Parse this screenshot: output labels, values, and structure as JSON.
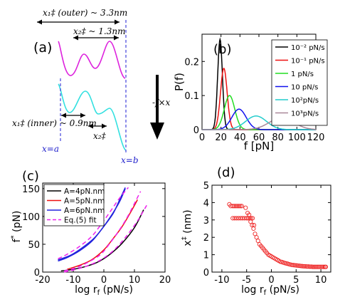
{
  "chart_data": [
    {
      "type": "line",
      "panel_label": "(a)",
      "annotations": {
        "outer_distance": "x₁‡ (outer) ~ 3.3nm",
        "x2_outer": "x₂‡ ~ 1.3nm",
        "inner_distance": "x₁‡ (inner) ~ 0.9nm",
        "x2_inner": "x₂‡",
        "force_label": "-f×x",
        "x_a": "x=a",
        "x_b": "x=b"
      },
      "colors": {
        "upper_curve": "#dd22dd",
        "lower_curve": "#33e0e0",
        "boundary": "#4444dd"
      }
    },
    {
      "type": "line",
      "panel_label": "(b)",
      "xlabel": "f [pN]",
      "ylabel": "P(f)",
      "xlim": [
        0,
        120
      ],
      "ylim": [
        0,
        0.28
      ],
      "xticks": [
        0,
        20,
        40,
        60,
        80,
        100,
        120
      ],
      "yticks": [
        0,
        0.1,
        0.2
      ],
      "ytick_labels": [
        "0",
        "0.1",
        "0.2"
      ],
      "legend": "top-right",
      "series": [
        {
          "name": "10⁻² pN/s",
          "peak_f": 19,
          "peak_p": 0.265,
          "sigma": 2.5,
          "color": "#000000"
        },
        {
          "name": "10⁻¹ pN/s",
          "peak_f": 23,
          "peak_p": 0.18,
          "sigma": 3.5,
          "color": "#ee1111"
        },
        {
          "name": "1 pN/s",
          "peak_f": 29,
          "peak_p": 0.1,
          "sigma": 5.5,
          "color": "#22dd22"
        },
        {
          "name": "10 pN/s",
          "peak_f": 39,
          "peak_p": 0.06,
          "sigma": 7.5,
          "color": "#1111ee"
        },
        {
          "name": "10²pN/s",
          "peak_f": 57,
          "peak_p": 0.04,
          "sigma": 11,
          "color": "#22cccc"
        },
        {
          "name": "10³pN/s",
          "peak_f": 84,
          "peak_p": 0.035,
          "sigma": 13,
          "color": "#aa8899"
        }
      ]
    },
    {
      "type": "line",
      "panel_label": "(c)",
      "xlabel": "log r",
      "xlabel_sub": "f",
      "xlabel_unit": " (pN/s)",
      "ylabel": "f",
      "ylabel_sup": "*",
      "ylabel_unit": " (pN)",
      "xlim": [
        -20,
        20
      ],
      "ylim": [
        0,
        160
      ],
      "xticks": [
        -20,
        -10,
        0,
        10,
        20
      ],
      "yticks": [
        0,
        50,
        100,
        150
      ],
      "legend": "top-left",
      "series": [
        {
          "name": "A=4pN.nm",
          "color": "#000000",
          "dash": false,
          "curves": [
            {
              "x": [
                -14,
                -10,
                -6,
                -2,
                2,
                6,
                10,
                13
              ],
              "y": [
                2,
                5,
                10,
                18,
                32,
                52,
                80,
                112
              ]
            }
          ]
        },
        {
          "name": "A=5pN.nm",
          "color": "#ee1111",
          "dash": false,
          "curves": [
            {
              "x": [
                -12,
                -8,
                -4,
                0,
                3,
                6,
                9,
                11
              ],
              "y": [
                5,
                12,
                22,
                40,
                60,
                82,
                110,
                130
              ]
            }
          ]
        },
        {
          "name": "A=6pN.nm",
          "color": "#2222dd",
          "dash": false,
          "curves": [
            {
              "x": [
                -15,
                -12,
                -8,
                -4,
                -1,
                2,
                5,
                7
              ],
              "y": [
                20,
                26,
                38,
                55,
                75,
                98,
                125,
                150
              ]
            },
            {
              "x": [
                -15,
                -11,
                -7,
                -3,
                0,
                3,
                5,
                7
              ],
              "y": [
                22,
                30,
                44,
                62,
                82,
                105,
                128,
                152
              ]
            }
          ]
        },
        {
          "name": "Eq.(5) fit",
          "color": "#ee22ee",
          "dash": true,
          "curves": [
            {
              "x": [
                -15,
                -12,
                -8,
                -4,
                -1,
                2,
                5,
                8
              ],
              "y": [
                24,
                32,
                46,
                64,
                85,
                108,
                132,
                152
              ]
            },
            {
              "x": [
                -13,
                -9,
                -5,
                -1,
                2,
                5,
                8,
                12
              ],
              "y": [
                2,
                8,
                18,
                32,
                52,
                75,
                102,
                145
              ]
            },
            {
              "x": [
                -13,
                -9,
                -5,
                -1,
                3,
                7,
                11,
                14
              ],
              "y": [
                0,
                5,
                12,
                22,
                38,
                62,
                92,
                120
              ]
            }
          ]
        }
      ]
    },
    {
      "type": "scatter",
      "panel_label": "(d)",
      "xlabel": "log r",
      "xlabel_sub": "f",
      "xlabel_unit": " (pN/s)",
      "ylabel": "x",
      "ylabel_sup": "‡",
      "ylabel_unit": " (nm)",
      "xlim": [
        -12,
        12
      ],
      "ylim": [
        0,
        5
      ],
      "xticks": [
        -10,
        -5,
        0,
        5,
        10
      ],
      "yticks": [
        0,
        1,
        2,
        3,
        4,
        5
      ],
      "color": "#ee2222",
      "x": [
        -8.5,
        -8.2,
        -7.8,
        -7.5,
        -7.2,
        -6.9,
        -6.6,
        -6.3,
        -6.0,
        -7.8,
        -7.4,
        -7.0,
        -6.6,
        -6.2,
        -5.8,
        -5.4,
        -5.0,
        -4.7,
        -4.4,
        -4.1,
        -3.8,
        -3.5,
        -5.2,
        -4.8,
        -4.5,
        -4.2,
        -3.9,
        -3.6,
        -3.3,
        -3.0,
        -2.7,
        -2.4,
        -2.1,
        -1.8,
        -1.5,
        -1.2,
        -0.9,
        -0.6,
        -0.3,
        0.0,
        0.3,
        0.6,
        0.9,
        1.2,
        1.5,
        1.8,
        2.1,
        2.4,
        2.7,
        3.0,
        3.3,
        3.6,
        3.9,
        4.2,
        4.5,
        4.8,
        5.1,
        5.4,
        5.7,
        6.0,
        6.3,
        6.6,
        6.9,
        7.2,
        7.5,
        7.8,
        8.1,
        8.4,
        8.7,
        9.0,
        9.3,
        9.6,
        9.9,
        10.2,
        10.5,
        10.8,
        11.0
      ],
      "y": [
        3.9,
        3.8,
        3.8,
        3.8,
        3.8,
        3.8,
        3.8,
        3.8,
        3.8,
        3.1,
        3.1,
        3.1,
        3.1,
        3.1,
        3.1,
        3.1,
        3.1,
        3.1,
        3.1,
        3.1,
        3.1,
        2.7,
        3.7,
        3.4,
        3.3,
        2.9,
        2.7,
        2.5,
        2.2,
        2.0,
        1.8,
        1.6,
        1.5,
        1.4,
        1.3,
        1.2,
        1.1,
        1.0,
        0.95,
        0.9,
        0.85,
        0.8,
        0.75,
        0.7,
        0.65,
        0.6,
        0.58,
        0.55,
        0.52,
        0.5,
        0.48,
        0.45,
        0.43,
        0.41,
        0.4,
        0.39,
        0.38,
        0.37,
        0.36,
        0.35,
        0.34,
        0.33,
        0.33,
        0.32,
        0.32,
        0.31,
        0.31,
        0.3,
        0.3,
        0.3,
        0.3,
        0.3,
        0.3,
        0.3,
        0.3,
        0.3,
        0.3
      ]
    }
  ]
}
